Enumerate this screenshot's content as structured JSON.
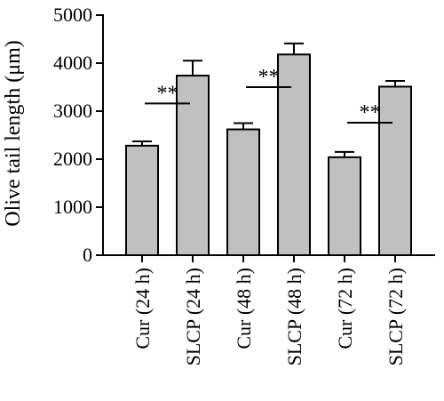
{
  "chart_data": {
    "type": "bar",
    "title": "",
    "xlabel": "",
    "ylabel": "Olive tail length (μm)",
    "ylim": [
      0,
      5000
    ],
    "yticks": [
      0,
      1000,
      2000,
      3000,
      4000,
      5000
    ],
    "grid": false,
    "legend": "none",
    "bar_color": "#c0c0c0",
    "categories": [
      "Cur (24 h)",
      "SLCP (24 h)",
      "Cur (48 h)",
      "SLCP (48 h)",
      "Cur (72 h)",
      "SLCP (72 h)"
    ],
    "values": [
      2280,
      3740,
      2620,
      4180,
      2040,
      3510
    ],
    "errors": [
      90,
      310,
      130,
      230,
      110,
      120
    ],
    "significance": [
      {
        "from": 0,
        "to": 1,
        "y": 3160,
        "label": "**"
      },
      {
        "from": 2,
        "to": 3,
        "y": 3500,
        "label": "**"
      },
      {
        "from": 4,
        "to": 5,
        "y": 2760,
        "label": "**"
      }
    ]
  }
}
